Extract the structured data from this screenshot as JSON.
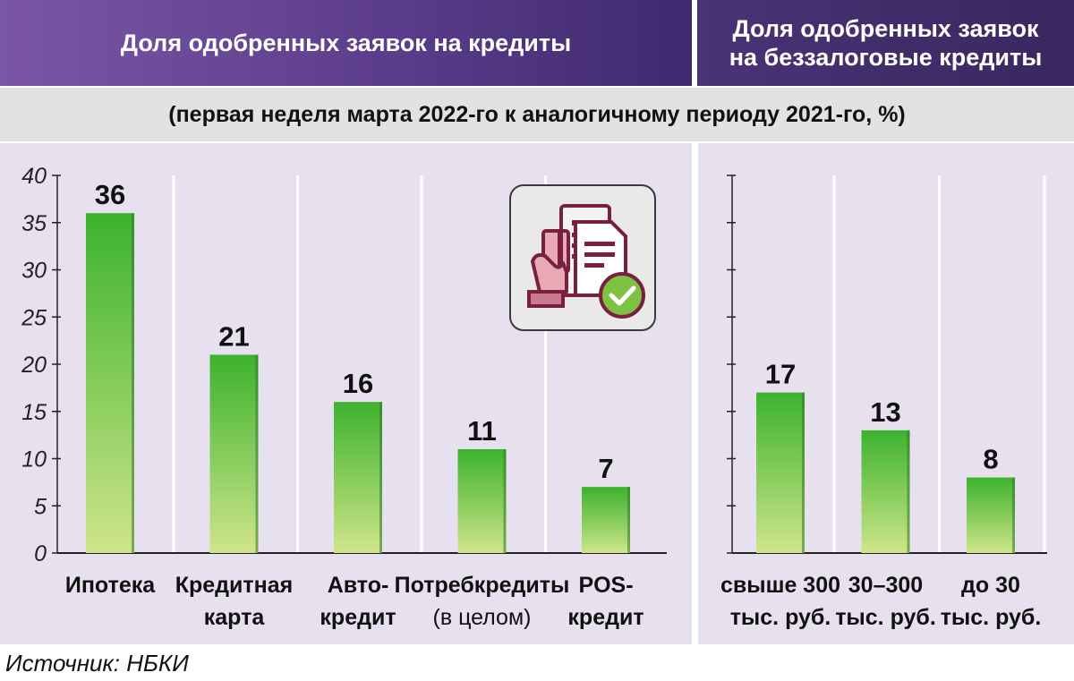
{
  "header": {
    "left_title": "Доля одобренных заявок на кредиты",
    "right_title_line1": "Доля одобренных заявок",
    "right_title_line2": "на беззалоговые кредиты"
  },
  "subtitle": "(первая неделя марта 2022-го к аналогичному периоду 2021-го, %)",
  "source": "Источник: НБКИ",
  "icon": "credit-card-document-approved-icon",
  "colors": {
    "bar_top": "#3cb22e",
    "bar_bottom": "#cfe58a",
    "panel": "#e7e1ef",
    "header": "#5c3d8c"
  },
  "chart_data": [
    {
      "type": "bar",
      "title": "Доля одобренных заявок на кредиты",
      "ylim": [
        0,
        40
      ],
      "yticks": [
        0,
        5,
        10,
        15,
        20,
        25,
        30,
        35,
        40
      ],
      "categories": [
        [
          "Ипотека"
        ],
        [
          "Кредитная",
          "карта"
        ],
        [
          "Авто-",
          "кредит"
        ],
        [
          "Потребкредиты",
          "(в целом)"
        ],
        [
          "POS-",
          "кредит"
        ]
      ],
      "values": [
        36,
        21,
        16,
        11,
        7
      ],
      "grid": true
    },
    {
      "type": "bar",
      "title": "Доля одобренных заявок на беззалоговые кредиты",
      "ylim": [
        0,
        40
      ],
      "categories": [
        [
          "свыше 300",
          "тыс. руб."
        ],
        [
          "30–300",
          "тыс. руб."
        ],
        [
          "до 30",
          "тыс. руб."
        ]
      ],
      "values": [
        17,
        13,
        8
      ],
      "grid": true
    }
  ]
}
